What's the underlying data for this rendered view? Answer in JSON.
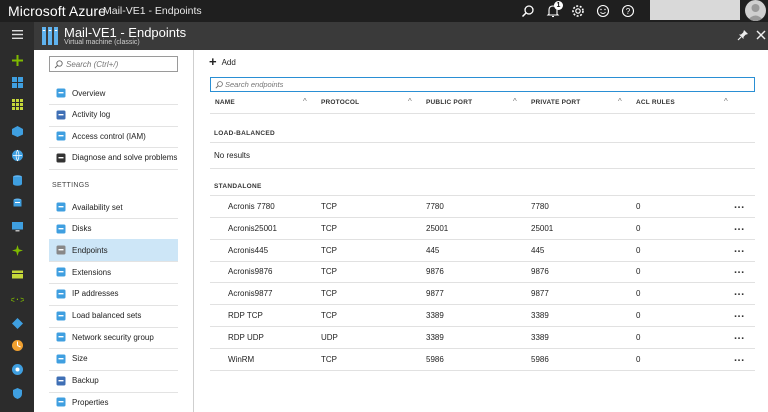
{
  "topbar": {
    "brand": "Microsoft Azure",
    "breadcrumb": "Mail-VE1 - Endpoints",
    "notification_count": "1"
  },
  "blade": {
    "title": "Mail-VE1 - Endpoints",
    "subtitle": "Virtual machine (classic)"
  },
  "menu": {
    "search_placeholder": "Search (Ctrl+/)",
    "top_items": [
      {
        "label": "Overview",
        "icon": "overview-icon"
      },
      {
        "label": "Activity log",
        "icon": "activity-log-icon"
      },
      {
        "label": "Access control (IAM)",
        "icon": "access-control-icon"
      },
      {
        "label": "Diagnose and solve problems",
        "icon": "diagnose-icon"
      }
    ],
    "settings_label": "SETTINGS",
    "settings_items": [
      {
        "label": "Availability set",
        "icon": "availability-set-icon"
      },
      {
        "label": "Disks",
        "icon": "disks-icon"
      },
      {
        "label": "Endpoints",
        "icon": "endpoints-icon",
        "active": true
      },
      {
        "label": "Extensions",
        "icon": "extensions-icon"
      },
      {
        "label": "IP addresses",
        "icon": "ip-addresses-icon"
      },
      {
        "label": "Load balanced sets",
        "icon": "load-balanced-sets-icon"
      },
      {
        "label": "Network security group",
        "icon": "network-security-group-icon"
      },
      {
        "label": "Size",
        "icon": "size-icon"
      },
      {
        "label": "Backup",
        "icon": "backup-icon"
      },
      {
        "label": "Properties",
        "icon": "properties-icon"
      }
    ]
  },
  "content": {
    "add_label": "Add",
    "filter_placeholder": "Search endpoints",
    "columns": [
      "NAME",
      "PROTOCOL",
      "PUBLIC PORT",
      "PRIVATE PORT",
      "ACL RULES"
    ],
    "load_balanced_label": "LOAD-BALANCED",
    "no_results": "No results",
    "standalone_label": "STANDALONE",
    "rows": [
      {
        "name": "Acronis 7780",
        "protocol": "TCP",
        "public_port": "7780",
        "private_port": "7780",
        "acl": "0"
      },
      {
        "name": "Acronis25001",
        "protocol": "TCP",
        "public_port": "25001",
        "private_port": "25001",
        "acl": "0"
      },
      {
        "name": "Acronis445",
        "protocol": "TCP",
        "public_port": "445",
        "private_port": "445",
        "acl": "0"
      },
      {
        "name": "Acronis9876",
        "protocol": "TCP",
        "public_port": "9876",
        "private_port": "9876",
        "acl": "0"
      },
      {
        "name": "Acronis9877",
        "protocol": "TCP",
        "public_port": "9877",
        "private_port": "9877",
        "acl": "0"
      },
      {
        "name": "RDP TCP",
        "protocol": "TCP",
        "public_port": "3389",
        "private_port": "3389",
        "acl": "0"
      },
      {
        "name": "RDP UDP",
        "protocol": "UDP",
        "public_port": "3389",
        "private_port": "3389",
        "acl": "0"
      },
      {
        "name": "WinRM",
        "protocol": "TCP",
        "public_port": "5986",
        "private_port": "5986",
        "acl": "0"
      }
    ],
    "row_menu_label": "..."
  }
}
